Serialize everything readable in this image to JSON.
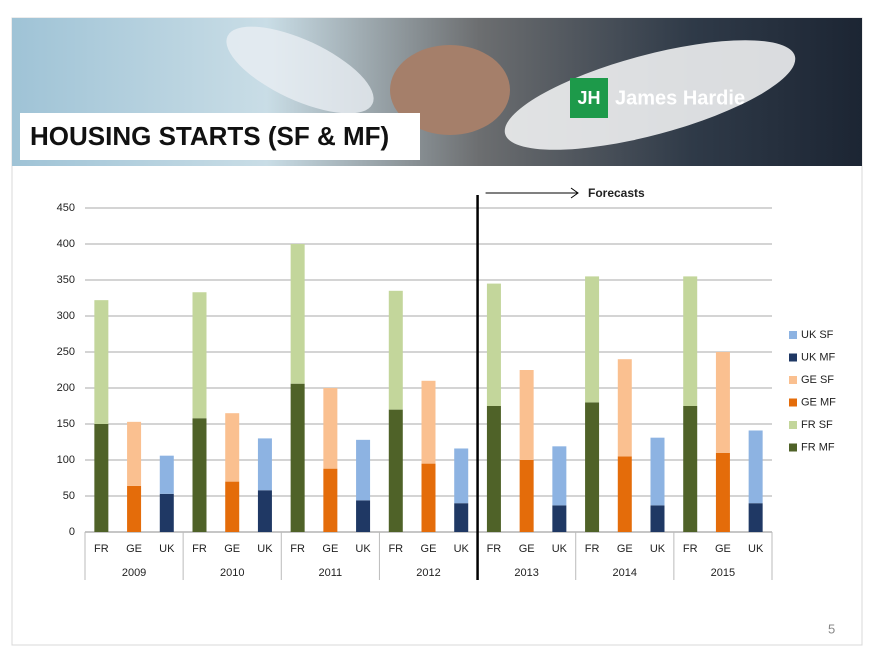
{
  "header": {
    "title": "HOUSING STARTS (SF & MF)",
    "logo": "James Hardie"
  },
  "chart_data": {
    "type": "stacked_bar",
    "annotation": "Forecasts",
    "categories": [
      "FR",
      "GE",
      "UK",
      "FR",
      "GE",
      "UK",
      "FR",
      "GE",
      "UK",
      "FR",
      "GE",
      "UK",
      "FR",
      "GE",
      "UK",
      "FR",
      "GE",
      "UK",
      "FR",
      "GE",
      "UK"
    ],
    "groups": [
      "2009",
      "2010",
      "2011",
      "2012",
      "2013",
      "2014",
      "2015"
    ],
    "series": [
      {
        "name": "UK SF",
        "color": "#8db3e2",
        "values": [
          null,
          null,
          53,
          null,
          null,
          72,
          null,
          null,
          84,
          null,
          null,
          76,
          null,
          null,
          82,
          null,
          null,
          94,
          null,
          null,
          101
        ]
      },
      {
        "name": "UK MF",
        "color": "#1f3864",
        "values": [
          null,
          null,
          53,
          null,
          null,
          58,
          null,
          null,
          44,
          null,
          null,
          40,
          null,
          null,
          37,
          null,
          null,
          37,
          null,
          null,
          40
        ]
      },
      {
        "name": "GE SF",
        "color": "#fac090",
        "values": [
          null,
          89,
          null,
          null,
          95,
          null,
          null,
          112,
          null,
          null,
          115,
          null,
          null,
          125,
          null,
          null,
          135,
          null,
          null,
          140,
          null
        ]
      },
      {
        "name": "GE MF",
        "color": "#e46c0a",
        "values": [
          null,
          64,
          null,
          null,
          70,
          null,
          null,
          88,
          null,
          null,
          95,
          null,
          null,
          100,
          null,
          null,
          105,
          null,
          null,
          110,
          null
        ]
      },
      {
        "name": "FR SF",
        "color": "#c3d69b",
        "values": [
          172,
          null,
          null,
          175,
          null,
          null,
          194,
          null,
          null,
          165,
          null,
          null,
          170,
          null,
          null,
          175,
          null,
          null,
          180,
          null,
          null
        ]
      },
      {
        "name": "FR MF",
        "color": "#4f6228",
        "values": [
          150,
          null,
          null,
          158,
          null,
          null,
          206,
          null,
          null,
          170,
          null,
          null,
          175,
          null,
          null,
          180,
          null,
          null,
          175,
          null,
          null
        ]
      }
    ],
    "ylim": [
      0,
      450
    ],
    "yticks": [
      0,
      50,
      100,
      150,
      200,
      250,
      300,
      350,
      400,
      450
    ],
    "grid": true
  },
  "footer": {
    "page": "5"
  }
}
